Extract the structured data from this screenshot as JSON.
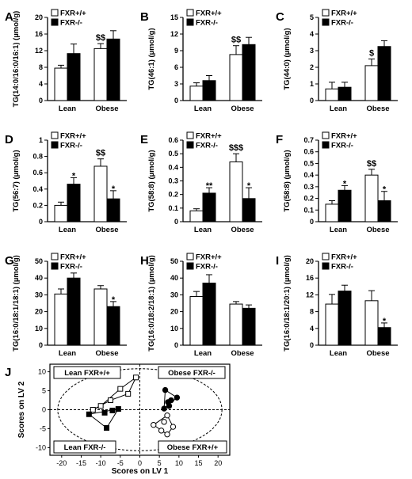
{
  "chart_data": [
    {
      "panel": "A",
      "type": "bar",
      "ylabel": "TG(14:0/16:0/16:1) (µmol/g)",
      "ylim": [
        0,
        20
      ],
      "yticks": [
        0,
        4,
        8,
        12,
        16,
        20
      ],
      "categories": [
        "Lean",
        "Obese"
      ],
      "series": [
        {
          "name": "FXR+/+",
          "values": [
            7.8,
            12.5
          ],
          "errors": [
            0.7,
            1.2
          ]
        },
        {
          "name": "FXR-/-",
          "values": [
            11.3,
            14.8
          ],
          "errors": [
            2.3,
            2.0
          ]
        }
      ],
      "annotations": [
        {
          "series": 0,
          "category": 1,
          "text": "$$"
        }
      ]
    },
    {
      "panel": "B",
      "type": "bar",
      "ylabel": "TG(46:1) (µmol/g)",
      "ylim": [
        0,
        15
      ],
      "yticks": [
        0,
        3,
        6,
        9,
        12,
        15
      ],
      "categories": [
        "Lean",
        "Obese"
      ],
      "series": [
        {
          "name": "FXR+/+",
          "values": [
            2.6,
            8.3
          ],
          "errors": [
            0.6,
            1.6
          ]
        },
        {
          "name": "FXR-/-",
          "values": [
            3.6,
            10.1
          ],
          "errors": [
            0.9,
            1.3
          ]
        }
      ],
      "annotations": [
        {
          "series": 0,
          "category": 1,
          "text": "$$"
        }
      ]
    },
    {
      "panel": "C",
      "type": "bar",
      "ylabel": "TG(44:0) (µmol/g)",
      "ylim": [
        0,
        5
      ],
      "yticks": [
        0,
        1,
        2,
        3,
        4,
        5
      ],
      "categories": [
        "Lean",
        "Obese"
      ],
      "series": [
        {
          "name": "FXR+/+",
          "values": [
            0.7,
            2.1
          ],
          "errors": [
            0.4,
            0.4
          ]
        },
        {
          "name": "FXR-/-",
          "values": [
            0.8,
            3.25
          ],
          "errors": [
            0.3,
            0.35
          ]
        }
      ],
      "annotations": [
        {
          "series": 0,
          "category": 1,
          "text": "$"
        }
      ]
    },
    {
      "panel": "D",
      "type": "bar",
      "ylabel": "TG(56:7) (µmol/g)",
      "ylim": [
        0,
        1.0
      ],
      "yticks": [
        0,
        0.2,
        0.4,
        0.6,
        0.8,
        1.0
      ],
      "categories": [
        "Lean",
        "Obese"
      ],
      "series": [
        {
          "name": "FXR+/+",
          "values": [
            0.2,
            0.68
          ],
          "errors": [
            0.04,
            0.09
          ]
        },
        {
          "name": "FXR-/-",
          "values": [
            0.46,
            0.28
          ],
          "errors": [
            0.08,
            0.1
          ]
        }
      ],
      "annotations": [
        {
          "series": 1,
          "category": 0,
          "text": "*"
        },
        {
          "series": 0,
          "category": 1,
          "text": "$$"
        },
        {
          "series": 1,
          "category": 1,
          "text": "*"
        }
      ]
    },
    {
      "panel": "E",
      "type": "bar",
      "ylabel": "TG(58:8) (µmol/g)",
      "ylim": [
        0,
        0.6
      ],
      "yticks": [
        0,
        0.1,
        0.2,
        0.3,
        0.4,
        0.5,
        0.6
      ],
      "categories": [
        "Lean",
        "Obese"
      ],
      "series": [
        {
          "name": "FXR+/+",
          "values": [
            0.08,
            0.44
          ],
          "errors": [
            0.015,
            0.06
          ]
        },
        {
          "name": "FXR-/-",
          "values": [
            0.21,
            0.17
          ],
          "errors": [
            0.04,
            0.08
          ]
        }
      ],
      "annotations": [
        {
          "series": 1,
          "category": 0,
          "text": "**"
        },
        {
          "series": 0,
          "category": 1,
          "text": "$$$"
        },
        {
          "series": 1,
          "category": 1,
          "text": "*"
        }
      ]
    },
    {
      "panel": "F",
      "type": "bar",
      "ylabel": "TG(58:8) (µmol/g)",
      "ylim": [
        0,
        0.7
      ],
      "yticks": [
        0,
        0.1,
        0.2,
        0.3,
        0.4,
        0.5,
        0.6,
        0.7
      ],
      "categories": [
        "Lean",
        "Obese"
      ],
      "series": [
        {
          "name": "FXR+/+",
          "values": [
            0.15,
            0.4
          ],
          "errors": [
            0.03,
            0.05
          ]
        },
        {
          "name": "FXR-/-",
          "values": [
            0.27,
            0.18
          ],
          "errors": [
            0.04,
            0.08
          ]
        }
      ],
      "annotations": [
        {
          "series": 1,
          "category": 0,
          "text": "*"
        },
        {
          "series": 0,
          "category": 1,
          "text": "$$"
        },
        {
          "series": 1,
          "category": 1,
          "text": "*"
        }
      ]
    },
    {
      "panel": "G",
      "type": "bar",
      "ylabel": "TG(16:0/18:1/18:1) (µmol/g)",
      "ylim": [
        0,
        50
      ],
      "yticks": [
        0,
        10,
        20,
        30,
        40,
        50
      ],
      "categories": [
        "Lean",
        "Obese"
      ],
      "series": [
        {
          "name": "FXR+/+",
          "values": [
            30.5,
            33.5
          ],
          "errors": [
            3.0,
            2.0
          ]
        },
        {
          "name": "FXR-/-",
          "values": [
            40.0,
            23.0
          ],
          "errors": [
            3.0,
            3.0
          ]
        }
      ],
      "annotations": [
        {
          "series": 1,
          "category": 1,
          "text": "*"
        }
      ]
    },
    {
      "panel": "H",
      "type": "bar",
      "ylabel": "TG(16:0/18:2/18:1) (µmol/g)",
      "ylim": [
        0,
        50
      ],
      "yticks": [
        0,
        10,
        20,
        30,
        40,
        50
      ],
      "categories": [
        "Lean",
        "Obese"
      ],
      "series": [
        {
          "name": "FXR+/+",
          "values": [
            29.0,
            24.5
          ],
          "errors": [
            3.0,
            1.5
          ]
        },
        {
          "name": "FXR-/-",
          "values": [
            37.0,
            22.0
          ],
          "errors": [
            5.0,
            2.0
          ]
        }
      ],
      "annotations": []
    },
    {
      "panel": "I",
      "type": "bar",
      "ylabel": "TG(16:0/18:1/20:1) (µmol/g)",
      "ylim": [
        0,
        20
      ],
      "yticks": [
        0,
        4,
        8,
        12,
        16,
        20
      ],
      "categories": [
        "Lean",
        "Obese"
      ],
      "series": [
        {
          "name": "FXR+/+",
          "values": [
            9.8,
            10.6
          ],
          "errors": [
            2.3,
            2.4
          ]
        },
        {
          "name": "FXR-/-",
          "values": [
            12.9,
            4.2
          ],
          "errors": [
            1.4,
            1.1
          ]
        }
      ],
      "annotations": [
        {
          "series": 1,
          "category": 1,
          "text": "*"
        }
      ]
    },
    {
      "panel": "J",
      "type": "scatter",
      "xlabel": "Scores on LV 1",
      "ylabel": "Scores on LV 2",
      "xlim": [
        -23,
        23
      ],
      "ylim": [
        -12,
        12
      ],
      "xticks": [
        -20,
        -15,
        -10,
        -5,
        0,
        5,
        10,
        15,
        20
      ],
      "yticks": [
        -10,
        -5,
        0,
        5,
        10
      ],
      "ellipse": {
        "rx": 21,
        "ry": 10.8
      },
      "group_labels": [
        "Lean FXR+/+",
        "Obese FXR-/-",
        "Lean FXR-/-",
        "Obese FXR+/+"
      ],
      "groups": [
        {
          "name": "Lean FXR+/+",
          "marker": "square-open",
          "points": [
            [
              -1,
              8.5
            ],
            [
              -3,
              4.2
            ],
            [
              -5,
              5.5
            ],
            [
              -7.5,
              2.5
            ],
            [
              -10,
              1
            ],
            [
              -12,
              0
            ]
          ],
          "hull": [
            [
              -1,
              8.5
            ],
            [
              -3,
              4.2
            ],
            [
              -7.5,
              2.5
            ],
            [
              -12,
              0
            ],
            [
              -10,
              1
            ],
            [
              -5,
              5.5
            ],
            [
              -1,
              8.5
            ]
          ]
        },
        {
          "name": "Lean FXR-/-",
          "marker": "square-filled",
          "points": [
            [
              -13,
              -1.2
            ],
            [
              -8.5,
              -4.8
            ],
            [
              -5.5,
              0.2
            ],
            [
              -7,
              -0.2
            ],
            [
              -9,
              -0.8
            ]
          ],
          "hull": [
            [
              -13,
              -1.2
            ],
            [
              -5.5,
              0.2
            ],
            [
              -8.5,
              -4.8
            ],
            [
              -13,
              -1.2
            ]
          ]
        },
        {
          "name": "Obese FXR-/-",
          "marker": "circle-filled",
          "points": [
            [
              6.5,
              5.2
            ],
            [
              9.5,
              3.2
            ],
            [
              8,
              2.5
            ],
            [
              7.2,
              2
            ],
            [
              7.5,
              1
            ],
            [
              6.2,
              0.3
            ]
          ],
          "hull": [
            [
              6.5,
              5.2
            ],
            [
              9.5,
              3.2
            ],
            [
              6.2,
              0.3
            ],
            [
              6.5,
              5.2
            ]
          ]
        },
        {
          "name": "Obese FXR+/+",
          "marker": "circle-open",
          "points": [
            [
              7,
              -1.5
            ],
            [
              8.5,
              -4.5
            ],
            [
              7,
              -6.5
            ],
            [
              5.5,
              -5.5
            ],
            [
              3.5,
              -4
            ],
            [
              6.2,
              -3.2
            ]
          ],
          "hull": [
            [
              7,
              -1.5
            ],
            [
              8.5,
              -4.5
            ],
            [
              7,
              -6.5
            ],
            [
              3.5,
              -4
            ],
            [
              7,
              -1.5
            ]
          ]
        }
      ]
    }
  ]
}
